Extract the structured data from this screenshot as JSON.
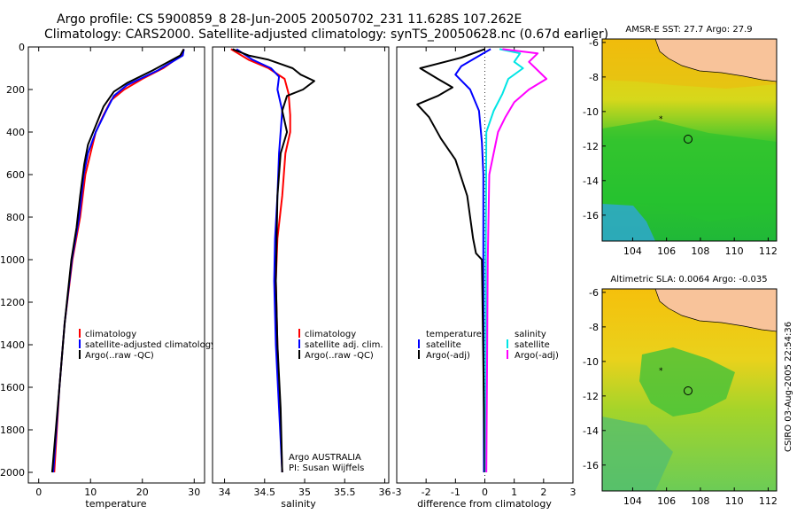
{
  "header": {
    "line1": "Argo profile: CS 5900859_8 28-Jun-2005 20050702_231 11.628S 107.262E",
    "line2": "Climatology: CARS2000. Satellite-adjusted climatology: synTS_20050628.nc (0.67d earlier)"
  },
  "colors": {
    "climatology": "#ff0000",
    "satellite": "#0000ff",
    "argo": "#000000",
    "salinity_sat": "#00e5e5",
    "salinity_argo": "#ff00ff"
  },
  "chart_data": [
    {
      "type": "line",
      "id": "temperature",
      "xlabel": "temperature",
      "xlim": [
        -2,
        32
      ],
      "ylim": [
        2050,
        0
      ],
      "xticks": [
        0,
        10,
        20,
        30
      ],
      "yticks": [
        0,
        200,
        400,
        600,
        800,
        1000,
        1200,
        1400,
        1600,
        1800,
        2000
      ],
      "legend": [
        "climatology",
        "satellite-adjusted climatology",
        "Argo(..raw -QC)"
      ],
      "series": [
        {
          "name": "climatology",
          "color": "#ff0000",
          "points": [
            [
              28.0,
              10
            ],
            [
              27.5,
              40
            ],
            [
              24,
              100
            ],
            [
              20,
              150
            ],
            [
              16.5,
              200
            ],
            [
              14,
              250
            ],
            [
              12.5,
              320
            ],
            [
              11,
              400
            ],
            [
              10,
              500
            ],
            [
              9,
              600
            ],
            [
              8,
              800
            ],
            [
              6.5,
              1000
            ],
            [
              5,
              1300
            ],
            [
              4,
              1600
            ],
            [
              3,
              2000
            ]
          ]
        },
        {
          "name": "satellite",
          "color": "#0000ff",
          "points": [
            [
              28.0,
              10
            ],
            [
              27.8,
              40
            ],
            [
              23,
              110
            ],
            [
              17,
              180
            ],
            [
              14.5,
              230
            ],
            [
              13,
              300
            ],
            [
              11,
              400
            ],
            [
              9.5,
              500
            ],
            [
              8.7,
              600
            ],
            [
              7.8,
              800
            ],
            [
              6.4,
              1000
            ],
            [
              5,
              1300
            ],
            [
              4,
              1600
            ],
            [
              2.8,
              2000
            ]
          ]
        },
        {
          "name": "argo",
          "color": "#000000",
          "points": [
            [
              28.0,
              10
            ],
            [
              27.3,
              40
            ],
            [
              22,
              110
            ],
            [
              17,
              170
            ],
            [
              14.5,
              210
            ],
            [
              12.5,
              280
            ],
            [
              11.5,
              340
            ],
            [
              10.5,
              400
            ],
            [
              9.5,
              460
            ],
            [
              8.8,
              550
            ],
            [
              8,
              700
            ],
            [
              7.3,
              850
            ],
            [
              6.3,
              1000
            ],
            [
              5,
              1300
            ],
            [
              4,
              1600
            ],
            [
              2.6,
              2000
            ]
          ]
        }
      ]
    },
    {
      "type": "line",
      "id": "salinity",
      "xlabel": "salinity",
      "xlim": [
        33.85,
        36.05
      ],
      "ylim": [
        2050,
        0
      ],
      "xticks": [
        34,
        34.5,
        35,
        35.5,
        36
      ],
      "legend": [
        "climatology",
        "satellite adj. clim.",
        "Argo(..raw -QC)"
      ],
      "annotations": [
        "Argo AUSTRALIA",
        "PI: Susan Wijffels"
      ],
      "series": [
        {
          "name": "climatology",
          "color": "#ff0000",
          "points": [
            [
              34.08,
              10
            ],
            [
              34.3,
              60
            ],
            [
              34.55,
              100
            ],
            [
              34.75,
              150
            ],
            [
              34.8,
              220
            ],
            [
              34.82,
              320
            ],
            [
              34.82,
              400
            ],
            [
              34.76,
              500
            ],
            [
              34.72,
              700
            ],
            [
              34.66,
              900
            ],
            [
              34.64,
              1100
            ],
            [
              34.66,
              1400
            ],
            [
              34.69,
              1700
            ],
            [
              34.72,
              2000
            ]
          ]
        },
        {
          "name": "satellite",
          "color": "#0000ff",
          "points": [
            [
              34.15,
              10
            ],
            [
              34.35,
              60
            ],
            [
              34.58,
              100
            ],
            [
              34.68,
              140
            ],
            [
              34.66,
              200
            ],
            [
              34.72,
              300
            ],
            [
              34.7,
              400
            ],
            [
              34.68,
              500
            ],
            [
              34.66,
              700
            ],
            [
              34.63,
              900
            ],
            [
              34.62,
              1100
            ],
            [
              34.64,
              1400
            ],
            [
              34.68,
              1700
            ],
            [
              34.72,
              2000
            ]
          ]
        },
        {
          "name": "argo",
          "color": "#000000",
          "points": [
            [
              34.1,
              10
            ],
            [
              34.3,
              40
            ],
            [
              34.55,
              60
            ],
            [
              34.7,
              80
            ],
            [
              34.85,
              100
            ],
            [
              34.95,
              130
            ],
            [
              35.12,
              160
            ],
            [
              34.98,
              200
            ],
            [
              34.78,
              230
            ],
            [
              34.72,
              300
            ],
            [
              34.78,
              400
            ],
            [
              34.7,
              500
            ],
            [
              34.68,
              600
            ],
            [
              34.66,
              700
            ],
            [
              34.65,
              900
            ],
            [
              34.64,
              1100
            ],
            [
              34.66,
              1400
            ],
            [
              34.7,
              1700
            ],
            [
              34.72,
              2000
            ]
          ]
        }
      ]
    },
    {
      "type": "line",
      "id": "difference",
      "xlabel": "difference from climatology",
      "xlim": [
        -3,
        3
      ],
      "ylim": [
        2050,
        0
      ],
      "xticks": [
        -3,
        -2,
        -1,
        0,
        1,
        2,
        3
      ],
      "legend_left": [
        "temperature",
        "satellite",
        "Argo(-adj)"
      ],
      "legend_right": [
        "salinity",
        "satellite",
        "Argo(-adj)"
      ],
      "series": [
        {
          "name": "temperature satellite",
          "color": "#0000ff",
          "points": [
            [
              0.2,
              10
            ],
            [
              -0.3,
              50
            ],
            [
              -0.8,
              90
            ],
            [
              -1.0,
              130
            ],
            [
              -0.5,
              200
            ],
            [
              -0.2,
              300
            ],
            [
              -0.1,
              450
            ],
            [
              -0.05,
              600
            ],
            [
              -0.05,
              1000
            ],
            [
              -0.03,
              2000
            ]
          ]
        },
        {
          "name": "temperature argo",
          "color": "#000000",
          "points": [
            [
              0,
              10
            ],
            [
              -0.8,
              50
            ],
            [
              -2.2,
              100
            ],
            [
              -1.6,
              150
            ],
            [
              -1.1,
              190
            ],
            [
              -1.6,
              230
            ],
            [
              -2.3,
              270
            ],
            [
              -1.9,
              330
            ],
            [
              -1.5,
              430
            ],
            [
              -1.0,
              530
            ],
            [
              -0.6,
              700
            ],
            [
              -0.4,
              900
            ],
            [
              -0.3,
              970
            ],
            [
              -0.1,
              1000
            ],
            [
              0,
              2000
            ]
          ]
        },
        {
          "name": "salinity satellite",
          "color": "#00e5e5",
          "points": [
            [
              0.5,
              10
            ],
            [
              1.2,
              30
            ],
            [
              1.0,
              70
            ],
            [
              1.3,
              100
            ],
            [
              0.8,
              150
            ],
            [
              0.6,
              220
            ],
            [
              0.3,
              300
            ],
            [
              0.05,
              400
            ],
            [
              0.03,
              1000
            ],
            [
              0.03,
              2000
            ]
          ]
        },
        {
          "name": "salinity argo",
          "color": "#ff00ff",
          "points": [
            [
              0.6,
              10
            ],
            [
              1.8,
              30
            ],
            [
              1.5,
              70
            ],
            [
              1.8,
              110
            ],
            [
              2.1,
              150
            ],
            [
              1.5,
              200
            ],
            [
              1.0,
              260
            ],
            [
              0.7,
              330
            ],
            [
              0.45,
              400
            ],
            [
              0.15,
              600
            ],
            [
              0.1,
              1000
            ],
            [
              0.05,
              2000
            ]
          ]
        }
      ]
    },
    {
      "type": "heatmap",
      "id": "sst-map",
      "title": "AMSR-E SST: 27.7 Argo: 27.9",
      "xlim": [
        102.2,
        112.5
      ],
      "ylim": [
        -17.5,
        -5.8
      ],
      "xticks": [
        104,
        106,
        108,
        110,
        112
      ],
      "yticks": [
        -6,
        -8,
        -10,
        -12,
        -14,
        -16
      ],
      "argo_position": [
        107.262,
        -11.628
      ],
      "previous_position": [
        105.8,
        -10.6
      ]
    },
    {
      "type": "heatmap",
      "id": "sla-map",
      "title": "Altimetric SLA: 0.0064 Argo: -0.035",
      "xlim": [
        102.2,
        112.5
      ],
      "ylim": [
        -17.5,
        -5.8
      ],
      "xticks": [
        104,
        106,
        108,
        110,
        112
      ],
      "yticks": [
        -6,
        -8,
        -10,
        -12,
        -14,
        -16
      ],
      "argo_position": [
        107.262,
        -11.628
      ],
      "previous_position": [
        105.8,
        -10.6
      ]
    }
  ],
  "side_label": "CSIRO 03-Aug-2005 22:54:36"
}
